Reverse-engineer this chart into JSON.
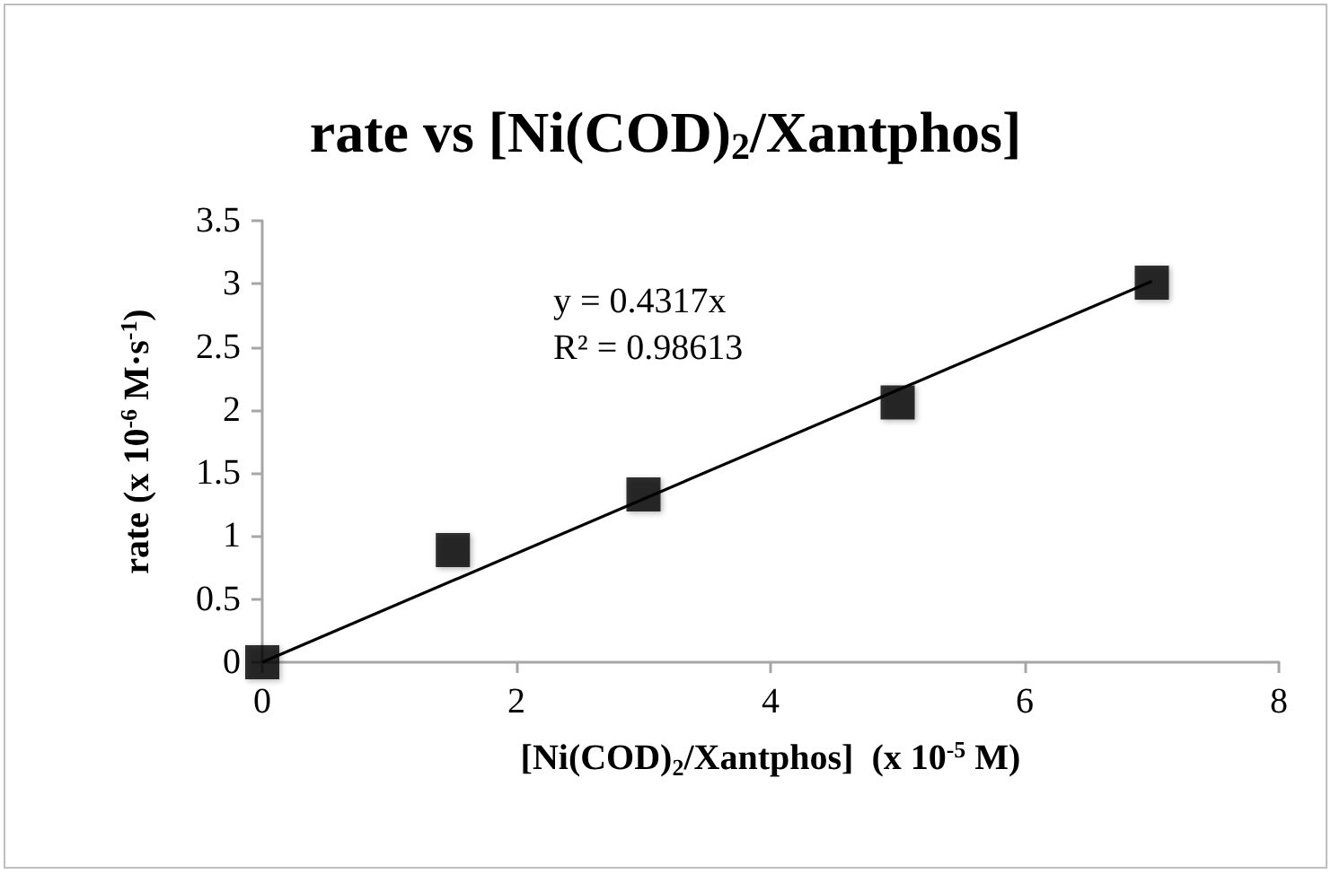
{
  "chart_data": {
    "type": "scatter",
    "title": "rate vs [Ni(COD)$_{2}$/Xantphos]",
    "xlabel": "[Ni(COD)$_{2}$/Xantphos]  (x 10$^{-5}$ M)",
    "ylabel": "rate (x 10$^{-6}$ M·s$^{-1}$)",
    "annotations": [
      "y = 0.4317x",
      "R² = 0.98613"
    ],
    "series": [
      {
        "marker": "square",
        "color": "#000000",
        "x": [
          0,
          1.5,
          3,
          5,
          7
        ],
        "values": [
          0,
          0.89,
          1.33,
          2.06,
          3.01
        ]
      },
      {
        "type": "line",
        "marker": "none",
        "color": "#000000",
        "x": [
          0,
          7
        ],
        "values": [
          0,
          3.02
        ]
      }
    ],
    "xlim": [
      0,
      8
    ],
    "xticks": [
      0,
      2,
      4,
      6,
      8
    ],
    "ylim": [
      0,
      3.5
    ],
    "yticks": [
      0,
      0.5,
      1,
      1.5,
      2,
      2.5,
      3,
      3.5
    ],
    "grid": false,
    "line_style": "solid"
  }
}
